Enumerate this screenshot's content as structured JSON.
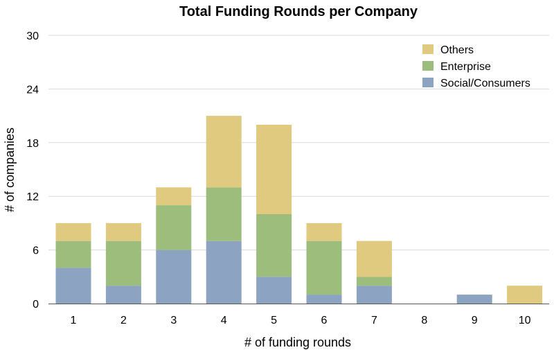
{
  "chart_data": {
    "type": "bar",
    "stacked": true,
    "title": "Total Funding Rounds per Company",
    "xlabel": "# of funding rounds",
    "ylabel": "# of companies",
    "categories": [
      "1",
      "2",
      "3",
      "4",
      "5",
      "6",
      "7",
      "8",
      "9",
      "10"
    ],
    "ylim": [
      0,
      30
    ],
    "yticks": [
      0,
      6,
      12,
      18,
      24,
      30
    ],
    "grid": true,
    "legend_position": "top-right",
    "series": [
      {
        "name": "Social/Consumers",
        "color": "#8ca3c1",
        "values": [
          4,
          2,
          6,
          7,
          3,
          1,
          2,
          0,
          1,
          0
        ]
      },
      {
        "name": "Enterprise",
        "color": "#9dbd7c",
        "values": [
          3,
          5,
          5,
          6,
          7,
          6,
          1,
          0,
          0,
          0
        ]
      },
      {
        "name": "Others",
        "color": "#dfca7f",
        "values": [
          2,
          2,
          2,
          8,
          10,
          2,
          4,
          0,
          0,
          2
        ]
      }
    ],
    "legend_order": [
      "Others",
      "Enterprise",
      "Social/Consumers"
    ]
  }
}
